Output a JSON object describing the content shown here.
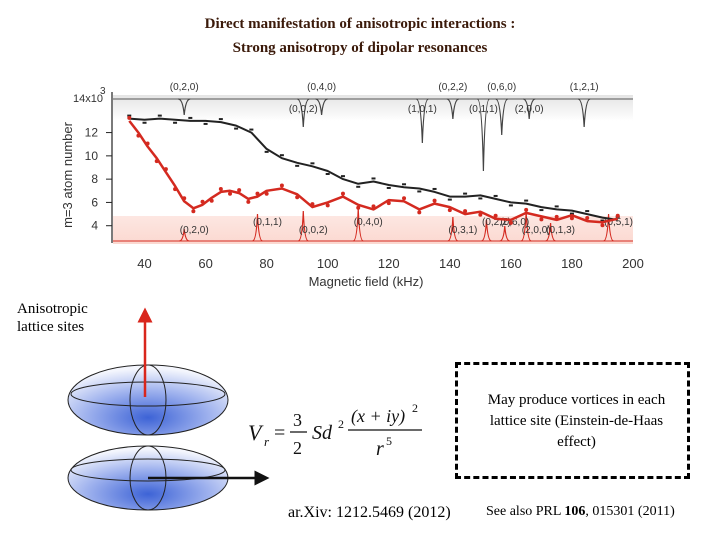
{
  "slide": {
    "title_line1": "Direct manifestation of anisotropic interactions :",
    "title_line2": "Strong anisotropy of dipolar resonances",
    "side_label_line1": "Anisotropic",
    "side_label_line2": "lattice sites",
    "vortex_note_line1": "May produce vortices in each",
    "vortex_note_line2": "lattice site (Einstein-de-Haas",
    "vortex_note_line3": "effect)",
    "reference_arxiv": "ar.Xiv: 1212.5469 (2012)",
    "reference_see_also_prefix": "See also PRL ",
    "reference_see_also_volume": "106",
    "reference_see_also_suffix": ", 015301 (2011)",
    "formula": {
      "lhs": "V",
      "lhs_sub": "r",
      "coef_num": "3",
      "coef_den": "2",
      "mid": "Sd",
      "mid_sup": "2",
      "frac_num": "(x + iy)",
      "frac_num_sup": "2",
      "frac_den": "r",
      "frac_den_sup": "5"
    }
  },
  "chart_data": {
    "type": "scatter",
    "xlabel": "Magnetic field (kHz)",
    "ylabel": "m=3 atom number",
    "y_multiplier_label": "14x10",
    "y_multiplier_exp": "3",
    "xlim": [
      30,
      200
    ],
    "ylim": [
      2,
      16
    ],
    "x_ticks": [
      "40",
      "60",
      "80",
      "100",
      "120",
      "140",
      "160",
      "180",
      "200"
    ],
    "y_ticks": [
      "12",
      "10",
      "8",
      "6",
      "4"
    ],
    "series": [
      {
        "name": "black data",
        "color": "#222222",
        "x": [
          35,
          40,
          45,
          50,
          55,
          60,
          65,
          70,
          75,
          80,
          85,
          90,
          95,
          100,
          105,
          110,
          115,
          120,
          125,
          130,
          135,
          140,
          145,
          150,
          155,
          160,
          165,
          170,
          175,
          180,
          185,
          190,
          195
        ],
        "y": [
          13.2,
          13.1,
          13.2,
          13.1,
          13.0,
          13.0,
          12.9,
          12.6,
          12.0,
          10.6,
          9.8,
          9.4,
          9.1,
          8.7,
          8.0,
          7.6,
          7.8,
          7.5,
          7.3,
          7.2,
          6.9,
          6.5,
          6.5,
          6.6,
          6.3,
          6.0,
          5.9,
          5.6,
          5.4,
          5.3,
          5.0,
          4.7,
          4.5
        ]
      },
      {
        "name": "red data",
        "color": "#d42a20",
        "x": [
          35,
          38,
          41,
          44,
          47,
          50,
          53,
          56,
          59,
          62,
          65,
          68,
          71,
          74,
          77,
          80,
          85,
          90,
          95,
          100,
          105,
          110,
          115,
          120,
          125,
          130,
          135,
          140,
          145,
          150,
          155,
          160,
          165,
          170,
          175,
          180,
          185,
          190,
          195
        ],
        "y": [
          13.0,
          12.0,
          10.8,
          9.8,
          8.6,
          7.4,
          6.1,
          5.5,
          5.8,
          6.4,
          6.9,
          7.0,
          6.8,
          6.3,
          6.5,
          7.0,
          7.2,
          6.7,
          5.6,
          6.0,
          6.5,
          5.8,
          5.4,
          6.2,
          6.1,
          5.4,
          5.9,
          5.6,
          5.0,
          5.2,
          4.6,
          4.5,
          5.1,
          4.8,
          4.5,
          4.9,
          4.4,
          4.3,
          4.6
        ]
      }
    ],
    "upper_resonances": [
      {
        "label": "(0,2,0)",
        "x": 53,
        "depth": 0.2
      },
      {
        "label": "(0,0,2)",
        "x": 92,
        "depth": 0.5
      },
      {
        "label": "(0,4,0)",
        "x": 98,
        "depth": 0.2
      },
      {
        "label": "(1,0,1)",
        "x": 131,
        "depth": 0.9
      },
      {
        "label": "(0,2,2)",
        "x": 141,
        "depth": 0.3
      },
      {
        "label": "(0,1,1)",
        "x": 151,
        "depth": 1.6
      },
      {
        "label": "(0,6,0)",
        "x": 157,
        "depth": 0.7
      },
      {
        "label": "(2,0,0)",
        "x": 166,
        "depth": 0.3
      },
      {
        "label": "(1,2,1)",
        "x": 184,
        "depth": 0.5
      }
    ],
    "lower_resonances": [
      {
        "label": "(0,2,0)",
        "x": 53,
        "height": 0.2
      },
      {
        "label": "(0,1,1)",
        "x": 77,
        "height": 0.7
      },
      {
        "label": "(0,0,2)",
        "x": 92,
        "height": 0.8
      },
      {
        "label": "(0,4,0)",
        "x": 110,
        "height": 0.9
      },
      {
        "label": "(0,3,1)",
        "x": 141,
        "height": 0.6
      },
      {
        "label": "(0,2,2)",
        "x": 152,
        "height": 0.5
      },
      {
        "label": "(2,0,0)",
        "x": 165,
        "height": 0.8
      },
      {
        "label": "(0,6,0)",
        "x": 158,
        "height": 0.3
      },
      {
        "label": "(0,1,3)",
        "x": 173,
        "height": 0.4
      },
      {
        "label": "(0,5,1)",
        "x": 192,
        "height": 0.7
      }
    ]
  },
  "colors": {
    "title": "#3b1a0a",
    "red_series": "#d42a20",
    "black_series": "#222222",
    "arrow": "#d9261c",
    "ellipsoid": "#5a78d8"
  }
}
